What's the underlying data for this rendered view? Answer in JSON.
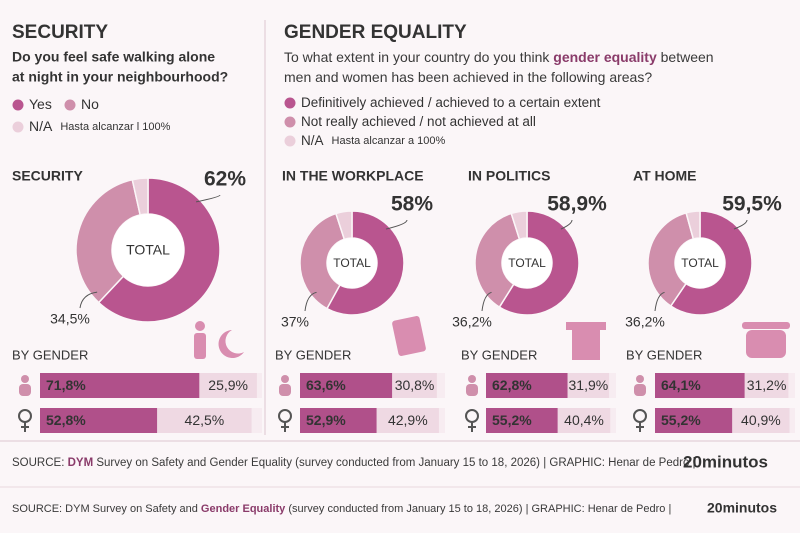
{
  "header_left": {
    "title": "SECURITY",
    "question": [
      "Do you feel safe walking alone",
      "at night in your neighbourhood?"
    ],
    "legend": [
      {
        "name": "Yes",
        "color": "#b9558f"
      },
      {
        "name": "No",
        "color": "#cf8fab"
      },
      {
        "name": "N/A",
        "note": "Hasta alcanzar l 100%",
        "color": "#ebcfdb"
      }
    ]
  },
  "header_right": {
    "title": "GENDER EQUALITY",
    "question": [
      [
        {
          "text": "To what extent in your country do you think "
        },
        {
          "text": "gender equality",
          "bold": true
        },
        {
          "text": " between"
        }
      ],
      [
        {
          "text": "men and women has been achieved in the following areas?"
        }
      ]
    ],
    "legend": [
      {
        "name": "Definitively achieved / achieved to a certain extent",
        "color": "#b9558f"
      },
      {
        "name": "Not really achieved / not achieved at all",
        "color": "#cf8fab"
      },
      {
        "name": "N/A",
        "note": "Hasta alcanzar a 100%",
        "color": "#ebcfdb"
      }
    ]
  },
  "chart_data": [
    {
      "type": "pie",
      "title": "SECURITY",
      "center_label": "TOTAL",
      "values": [
        62,
        34.5,
        3.5
      ],
      "value_labels": [
        "62%",
        "34,5%",
        null
      ],
      "colors": [
        "#b9558f",
        "#cf8fab",
        "#ebcfdb"
      ]
    },
    {
      "type": "bar",
      "title": "BY GENDER",
      "stacked": true,
      "orientation": "horizontal",
      "xlim": [
        0,
        100
      ],
      "series": [
        {
          "color": "#b0508a",
          "values": [
            71.8,
            52.8
          ],
          "value_labels": [
            "71,8%",
            "52,8%"
          ]
        },
        {
          "color": "#efd9e3",
          "values": [
            25.9,
            42.5
          ],
          "value_labels": [
            "25,9%",
            "42,5%"
          ]
        }
      ]
    },
    {
      "type": "pie",
      "title": "IN THE WORKPLACE",
      "center_label": "TOTAL",
      "values": [
        58,
        37,
        5
      ],
      "value_labels": [
        "58%",
        "37%",
        null
      ],
      "colors": [
        "#b9558f",
        "#cf8fab",
        "#ebcfdb"
      ]
    },
    {
      "type": "bar",
      "title": "BY GENDER",
      "stacked": true,
      "orientation": "horizontal",
      "xlim": [
        0,
        100
      ],
      "series": [
        {
          "color": "#b0508a",
          "values": [
            63.6,
            52.9
          ],
          "value_labels": [
            "63,6%",
            "52,9%"
          ]
        },
        {
          "color": "#efd9e3",
          "values": [
            30.8,
            42.9
          ],
          "value_labels": [
            "30,8%",
            "42,9%"
          ]
        }
      ]
    },
    {
      "type": "pie",
      "title": "IN POLITICS",
      "center_label": "TOTAL",
      "values": [
        58.9,
        36.2,
        4.9
      ],
      "value_labels": [
        "58,9%",
        "36,2%",
        null
      ],
      "colors": [
        "#b9558f",
        "#cf8fab",
        "#ebcfdb"
      ]
    },
    {
      "type": "bar",
      "title": "BY GENDER",
      "stacked": true,
      "orientation": "horizontal",
      "xlim": [
        0,
        100
      ],
      "series": [
        {
          "color": "#b0508a",
          "values": [
            62.8,
            55.2
          ],
          "value_labels": [
            "62,8%",
            "55,2%"
          ]
        },
        {
          "color": "#efd9e3",
          "values": [
            31.9,
            40.4
          ],
          "value_labels": [
            "31,9%",
            "40,4%"
          ]
        }
      ]
    },
    {
      "type": "pie",
      "title": "AT HOME",
      "center_label": "TOTAL",
      "values": [
        59.5,
        36.2,
        4.3
      ],
      "value_labels": [
        "59,5%",
        "36,2%",
        null
      ],
      "colors": [
        "#b9558f",
        "#cf8fab",
        "#ebcfdb"
      ]
    },
    {
      "type": "bar",
      "title": "BY GENDER",
      "stacked": true,
      "orientation": "horizontal",
      "xlim": [
        0,
        100
      ],
      "series": [
        {
          "color": "#b0508a",
          "values": [
            64.1,
            55.2
          ],
          "value_labels": [
            "64,1%",
            "55,2%"
          ]
        },
        {
          "color": "#efd9e3",
          "values": [
            31.2,
            40.9
          ],
          "value_labels": [
            "31,2%",
            "40,9%"
          ]
        }
      ]
    }
  ],
  "footers": [
    {
      "parts": [
        {
          "text": "SOURCE: "
        },
        {
          "text": "DYM",
          "bold": true
        },
        {
          "text": " Survey on Safety and Gender Equality (survey conducted from January 15 to 18, 2026)  |  GRAPHIC: Henar de Pedro  |"
        }
      ],
      "brand": "20minutos"
    },
    {
      "parts": [
        {
          "text": "SOURCE: DYM Survey on Safety and "
        },
        {
          "text": "Gender Equality",
          "bold": true
        },
        {
          "text": " (survey conducted from January 15 to 18, 2026)  |  GRAPHIC: Henar de Pedro  |"
        }
      ],
      "brand": "20minutos"
    }
  ]
}
